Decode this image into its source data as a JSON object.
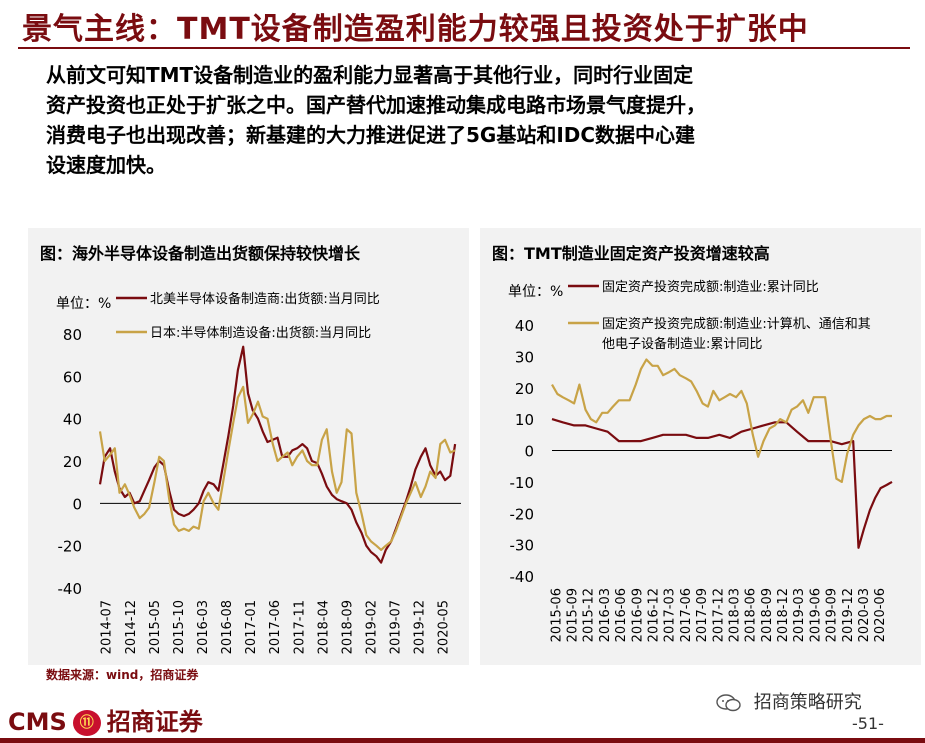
{
  "header": {
    "title": "景气主线：TMT设备制造盈利能力较强且投资处于扩张中",
    "intro_lines": [
      "从前文可知TMT设备制造业的盈利能力显著高于其他行业，同时行业固定",
      "资产投资也正处于扩张之中。国产替代加速推动集成电路市场景气度提升，",
      "消费电子也出现改善；新基建的大力推进促进了5G基站和IDC数据中心建",
      "设速度加快。"
    ]
  },
  "footer": {
    "source": "数据来源：wind，招商证券",
    "wechat": "招商策略研究",
    "logo_text": "CMS",
    "logo_cn": "招商证券",
    "page": "-51-"
  },
  "colors": {
    "brand": "#7a0c10",
    "series_dark": "#7a0c10",
    "series_gold": "#c8a347"
  },
  "chart_data": [
    {
      "type": "line",
      "title": "图：海外半导体设备制造出货额保持较快增长",
      "unit": "单位：%",
      "ylim": [
        -40,
        80
      ],
      "yticks": [
        "80",
        "60",
        "40",
        "20",
        "0",
        "-20",
        "-40"
      ],
      "x_tick_labels": [
        "2014-07",
        "2014-12",
        "2015-05",
        "2015-10",
        "2016-03",
        "2016-08",
        "2017-01",
        "2017-06",
        "2017-11",
        "2018-04",
        "2018-09",
        "2019-02",
        "2019-07",
        "2019-12",
        "2020-05"
      ],
      "x_range": [
        2014.5,
        2020.6
      ],
      "legend_position": "top-left",
      "series": [
        {
          "name": "北美半导体设备制造商:出货额:当月同比",
          "color": "#7a0c10",
          "x": [
            2014.5,
            2014.58,
            2014.67,
            2014.75,
            2014.83,
            2014.92,
            2015.0,
            2015.08,
            2015.17,
            2015.25,
            2015.33,
            2015.42,
            2015.5,
            2015.58,
            2015.67,
            2015.75,
            2015.83,
            2015.92,
            2016.0,
            2016.08,
            2016.17,
            2016.25,
            2016.33,
            2016.42,
            2016.5,
            2016.58,
            2016.67,
            2016.75,
            2016.83,
            2016.92,
            2017.0,
            2017.08,
            2017.17,
            2017.25,
            2017.33,
            2017.42,
            2017.5,
            2017.58,
            2017.67,
            2017.75,
            2017.83,
            2017.92,
            2018.0,
            2018.08,
            2018.17,
            2018.25,
            2018.33,
            2018.42,
            2018.5,
            2018.58,
            2018.67,
            2018.75,
            2018.83,
            2018.92,
            2019.0,
            2019.08,
            2019.17,
            2019.25,
            2019.33,
            2019.42,
            2019.5,
            2019.58,
            2019.67,
            2019.75,
            2019.83,
            2019.92,
            2020.0,
            2020.08,
            2020.17,
            2020.25,
            2020.33,
            2020.42,
            2020.5
          ],
          "values": [
            9,
            22,
            26,
            15,
            7,
            3,
            5,
            0,
            1,
            6,
            11,
            17,
            20,
            18,
            6,
            -3,
            -5,
            -6,
            -5,
            -3,
            0,
            6,
            10,
            9,
            6,
            18,
            32,
            46,
            63,
            74,
            52,
            44,
            40,
            34,
            29,
            30,
            31,
            22,
            22,
            25,
            26,
            28,
            26,
            20,
            19,
            14,
            8,
            4,
            2,
            1,
            0,
            -3,
            -9,
            -14,
            -20,
            -23,
            -25,
            -28,
            -22,
            -18,
            -12,
            -6,
            1,
            8,
            16,
            22,
            26,
            18,
            13,
            15,
            11,
            13,
            28
          ]
        },
        {
          "name": "日本:半导体制造设备:出货额:当月同比",
          "color": "#c8a347",
          "x": [
            2014.5,
            2014.58,
            2014.67,
            2014.75,
            2014.83,
            2014.92,
            2015.0,
            2015.08,
            2015.17,
            2015.25,
            2015.33,
            2015.42,
            2015.5,
            2015.58,
            2015.67,
            2015.75,
            2015.83,
            2015.92,
            2016.0,
            2016.08,
            2016.17,
            2016.25,
            2016.33,
            2016.42,
            2016.5,
            2016.58,
            2016.67,
            2016.75,
            2016.83,
            2016.92,
            2017.0,
            2017.08,
            2017.17,
            2017.25,
            2017.33,
            2017.42,
            2017.5,
            2017.58,
            2017.67,
            2017.75,
            2017.83,
            2017.92,
            2018.0,
            2018.08,
            2018.17,
            2018.25,
            2018.33,
            2018.42,
            2018.5,
            2018.58,
            2018.67,
            2018.75,
            2018.83,
            2018.92,
            2019.0,
            2019.08,
            2019.17,
            2019.25,
            2019.33,
            2019.42,
            2019.5,
            2019.58,
            2019.67,
            2019.75,
            2019.83,
            2019.92,
            2020.0,
            2020.08,
            2020.17,
            2020.25,
            2020.33,
            2020.42,
            2020.5
          ],
          "values": [
            34,
            20,
            23,
            26,
            5,
            9,
            4,
            -2,
            -7,
            -5,
            -2,
            10,
            22,
            20,
            2,
            -10,
            -13,
            -12,
            -13,
            -11,
            -12,
            1,
            5,
            0,
            -3,
            10,
            25,
            38,
            50,
            55,
            38,
            42,
            48,
            41,
            40,
            28,
            20,
            22,
            24,
            18,
            22,
            25,
            20,
            18,
            18,
            30,
            35,
            15,
            5,
            10,
            35,
            33,
            5,
            -5,
            -15,
            -18,
            -20,
            -22,
            -20,
            -18,
            -13,
            -7,
            0,
            5,
            10,
            3,
            8,
            15,
            12,
            28,
            30,
            24,
            25
          ]
        }
      ]
    },
    {
      "type": "line",
      "title": "图：TMT制造业固定资产投资增速较高",
      "unit": "单位：%",
      "ylim": [
        -40,
        40
      ],
      "yticks": [
        "40",
        "30",
        "20",
        "10",
        "0",
        "-10",
        "-20",
        "-30",
        "-40"
      ],
      "x_tick_labels": [
        "2015-06",
        "2015-09",
        "2015-12",
        "2016-03",
        "2016-06",
        "2016-09",
        "2016-12",
        "2017-03",
        "2017-06",
        "2017-09",
        "2017-12",
        "2018-03",
        "2018-06",
        "2018-09",
        "2018-12",
        "2019-03",
        "2019-06",
        "2019-09",
        "2019-12",
        "2020-03",
        "2020-06"
      ],
      "x_range": [
        2015.42,
        2020.5
      ],
      "legend_position": "top-left",
      "series": [
        {
          "name": "固定资产投资完成额:制造业:累计同比",
          "color": "#7a0c10",
          "x": [
            2015.42,
            2015.58,
            2015.75,
            2015.92,
            2016.08,
            2016.25,
            2016.42,
            2016.58,
            2016.75,
            2016.92,
            2017.08,
            2017.25,
            2017.42,
            2017.58,
            2017.75,
            2017.92,
            2018.08,
            2018.25,
            2018.42,
            2018.58,
            2018.75,
            2018.92,
            2019.08,
            2019.25,
            2019.42,
            2019.58,
            2019.75,
            2019.92,
            2020.0,
            2020.08,
            2020.17,
            2020.25,
            2020.33,
            2020.42,
            2020.5
          ],
          "values": [
            10,
            9,
            8,
            8,
            7,
            6,
            3,
            3,
            3,
            4,
            5,
            5,
            5,
            4,
            4,
            5,
            4,
            6,
            7,
            8,
            9,
            9,
            6,
            3,
            3,
            3,
            2,
            3,
            -31,
            -25,
            -19,
            -15,
            -12,
            -11,
            -10
          ]
        },
        {
          "name": "固定资产投资完成额:制造业:计算机、通信和其他电子设备制造业:累计同比",
          "color": "#c8a347",
          "x": [
            2015.42,
            2015.5,
            2015.58,
            2015.67,
            2015.75,
            2015.83,
            2015.92,
            2016.0,
            2016.08,
            2016.17,
            2016.25,
            2016.33,
            2016.42,
            2016.5,
            2016.58,
            2016.67,
            2016.75,
            2016.83,
            2016.92,
            2017.0,
            2017.08,
            2017.17,
            2017.25,
            2017.33,
            2017.42,
            2017.5,
            2017.58,
            2017.67,
            2017.75,
            2017.83,
            2017.92,
            2018.0,
            2018.08,
            2018.17,
            2018.25,
            2018.33,
            2018.42,
            2018.5,
            2018.58,
            2018.67,
            2018.75,
            2018.83,
            2018.92,
            2019.0,
            2019.08,
            2019.17,
            2019.25,
            2019.33,
            2019.42,
            2019.5,
            2019.58,
            2019.67,
            2019.75,
            2019.83,
            2019.92,
            2020.0,
            2020.08,
            2020.17,
            2020.25,
            2020.33,
            2020.42,
            2020.5
          ],
          "values": [
            21,
            18,
            17,
            16,
            15,
            21,
            13,
            10,
            9,
            12,
            12,
            14,
            16,
            16,
            16,
            21,
            26,
            29,
            27,
            27,
            24,
            25,
            26,
            24,
            23,
            22,
            19,
            15,
            14,
            19,
            16,
            17,
            18,
            17,
            19,
            15,
            5,
            -2,
            3,
            7,
            8,
            10,
            9,
            13,
            14,
            16,
            12,
            17,
            17,
            17,
            4,
            -9,
            -10,
            -1,
            5,
            8,
            10,
            11,
            10,
            10,
            11,
            11
          ]
        }
      ]
    }
  ]
}
